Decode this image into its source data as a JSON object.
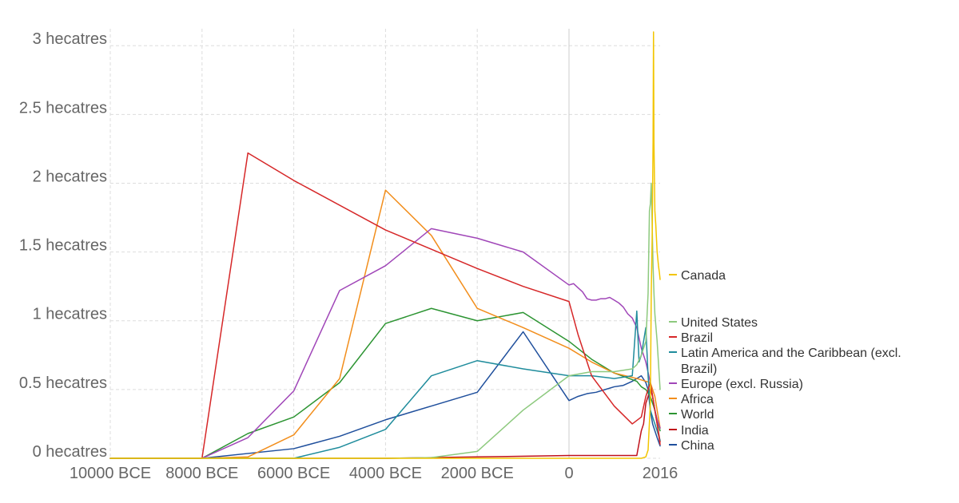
{
  "chart_data": {
    "type": "line",
    "title": "",
    "xlabel": "",
    "ylabel": "",
    "ylim": [
      0,
      3.1
    ],
    "xlim": [
      -10000,
      2016
    ],
    "grid": true,
    "legend": "right",
    "y_ticks": [
      {
        "value": 0,
        "label": "0 hecatres"
      },
      {
        "value": 0.5,
        "label": "0.5 hecatres"
      },
      {
        "value": 1,
        "label": "1 hecatres"
      },
      {
        "value": 1.5,
        "label": "1.5 hecatres"
      },
      {
        "value": 2,
        "label": "2 hecatres"
      },
      {
        "value": 2.5,
        "label": "2.5 hecatres"
      },
      {
        "value": 3,
        "label": "3 hecatres"
      }
    ],
    "x_ticks": [
      {
        "value": -10000,
        "label": "10000 BCE"
      },
      {
        "value": -8000,
        "label": "8000 BCE"
      },
      {
        "value": -6000,
        "label": "6000 BCE"
      },
      {
        "value": -4000,
        "label": "4000 BCE"
      },
      {
        "value": -2000,
        "label": "2000 BCE"
      },
      {
        "value": 0,
        "label": "0"
      },
      {
        "value": 2016,
        "label": "2016"
      }
    ],
    "series": [
      {
        "name": "Canada",
        "color": "#f2c500",
        "label_lines": [
          "Canada"
        ],
        "points": [
          [
            -10000,
            0
          ],
          [
            -8000,
            0
          ],
          [
            -7000,
            0
          ],
          [
            -6000,
            0
          ],
          [
            -5000,
            0
          ],
          [
            -4000,
            0
          ],
          [
            -3000,
            0
          ],
          [
            -2000,
            0
          ],
          [
            -1000,
            0
          ],
          [
            0,
            0
          ],
          [
            1000,
            0
          ],
          [
            1400,
            0
          ],
          [
            1600,
            0
          ],
          [
            1700,
            0.01
          ],
          [
            1750,
            0.06
          ],
          [
            1800,
            0.4
          ],
          [
            1820,
            1.2
          ],
          [
            1840,
            1.6
          ],
          [
            1860,
            2.3
          ],
          [
            1870,
            3.1
          ],
          [
            1880,
            2.3
          ],
          [
            1900,
            1.8
          ],
          [
            1920,
            1.7
          ],
          [
            1950,
            1.5
          ],
          [
            1980,
            1.4
          ],
          [
            2000,
            1.35
          ],
          [
            2016,
            1.3
          ]
        ]
      },
      {
        "name": "United States",
        "color": "#8dc97e",
        "label_lines": [
          "United States"
        ],
        "points": [
          [
            -10000,
            0
          ],
          [
            -8000,
            0
          ],
          [
            -6000,
            0
          ],
          [
            -4000,
            0
          ],
          [
            -3000,
            0.005
          ],
          [
            -2000,
            0.05
          ],
          [
            -1000,
            0.35
          ],
          [
            0,
            0.6
          ],
          [
            500,
            0.63
          ],
          [
            1000,
            0.63
          ],
          [
            1400,
            0.65
          ],
          [
            1500,
            0.68
          ],
          [
            1600,
            0.75
          ],
          [
            1700,
            0.85
          ],
          [
            1750,
            1.2
          ],
          [
            1780,
            1.8
          ],
          [
            1800,
            1.85
          ],
          [
            1820,
            2.0
          ],
          [
            1840,
            1.7
          ],
          [
            1860,
            1.4
          ],
          [
            1880,
            1.2
          ],
          [
            1900,
            1.05
          ],
          [
            1950,
            0.85
          ],
          [
            2016,
            0.5
          ]
        ]
      },
      {
        "name": "Brazil",
        "color": "#d62728",
        "label_lines": [
          "Brazil"
        ],
        "points": [
          [
            -10000,
            0
          ],
          [
            -8000,
            0
          ],
          [
            -7000,
            2.22
          ],
          [
            -6000,
            2.02
          ],
          [
            -4000,
            1.66
          ],
          [
            -2000,
            1.38
          ],
          [
            -1000,
            1.25
          ],
          [
            0,
            1.14
          ],
          [
            200,
            0.9
          ],
          [
            500,
            0.6
          ],
          [
            1000,
            0.38
          ],
          [
            1400,
            0.25
          ],
          [
            1600,
            0.3
          ],
          [
            1700,
            0.45
          ],
          [
            1750,
            0.5
          ],
          [
            1800,
            0.55
          ],
          [
            1850,
            0.45
          ],
          [
            1900,
            0.35
          ],
          [
            1950,
            0.25
          ],
          [
            2016,
            0.1
          ]
        ]
      },
      {
        "name": "Latin America and the Caribbean (excl. Brazil)",
        "color": "#1f8c9c",
        "label_lines": [
          "Latin America and the Caribbean (excl.",
          "Brazil)"
        ],
        "points": [
          [
            -10000,
            0
          ],
          [
            -8000,
            0
          ],
          [
            -6000,
            0
          ],
          [
            -5000,
            0.08
          ],
          [
            -4000,
            0.21
          ],
          [
            -3000,
            0.6
          ],
          [
            -2000,
            0.71
          ],
          [
            -1000,
            0.65
          ],
          [
            0,
            0.6
          ],
          [
            500,
            0.6
          ],
          [
            1000,
            0.58
          ],
          [
            1400,
            0.6
          ],
          [
            1500,
            1.07
          ],
          [
            1550,
            0.7
          ],
          [
            1600,
            0.75
          ],
          [
            1700,
            0.95
          ],
          [
            1750,
            0.6
          ],
          [
            1800,
            0.35
          ],
          [
            1850,
            0.3
          ],
          [
            1900,
            0.25
          ],
          [
            1950,
            0.2
          ],
          [
            2016,
            0.13
          ]
        ]
      },
      {
        "name": "Europe (excl. Russia)",
        "color": "#a046b8",
        "label_lines": [
          "Europe (excl. Russia)"
        ],
        "points": [
          [
            -10000,
            0
          ],
          [
            -8000,
            0
          ],
          [
            -7000,
            0.15
          ],
          [
            -6000,
            0.49
          ],
          [
            -5000,
            1.22
          ],
          [
            -4000,
            1.4
          ],
          [
            -3000,
            1.67
          ],
          [
            -2000,
            1.6
          ],
          [
            -1000,
            1.5
          ],
          [
            0,
            1.26
          ],
          [
            100,
            1.27
          ],
          [
            200,
            1.24
          ],
          [
            300,
            1.21
          ],
          [
            400,
            1.16
          ],
          [
            500,
            1.15
          ],
          [
            600,
            1.15
          ],
          [
            700,
            1.16
          ],
          [
            800,
            1.16
          ],
          [
            900,
            1.17
          ],
          [
            1000,
            1.15
          ],
          [
            1100,
            1.13
          ],
          [
            1200,
            1.1
          ],
          [
            1300,
            1.05
          ],
          [
            1400,
            1.02
          ],
          [
            1500,
            0.95
          ],
          [
            1600,
            0.8
          ],
          [
            1700,
            0.7
          ],
          [
            1800,
            0.55
          ],
          [
            1850,
            0.45
          ],
          [
            1900,
            0.35
          ],
          [
            1950,
            0.28
          ],
          [
            2016,
            0.22
          ]
        ]
      },
      {
        "name": "Africa",
        "color": "#f28e1c",
        "label_lines": [
          "Africa"
        ],
        "points": [
          [
            -10000,
            0
          ],
          [
            -8000,
            0
          ],
          [
            -7000,
            0.01
          ],
          [
            -6000,
            0.17
          ],
          [
            -5000,
            0.58
          ],
          [
            -4000,
            1.95
          ],
          [
            -3000,
            1.62
          ],
          [
            -2000,
            1.09
          ],
          [
            -1000,
            0.95
          ],
          [
            0,
            0.8
          ],
          [
            500,
            0.7
          ],
          [
            1000,
            0.62
          ],
          [
            1500,
            0.58
          ],
          [
            1700,
            0.56
          ],
          [
            1800,
            0.55
          ],
          [
            1850,
            0.5
          ],
          [
            1900,
            0.45
          ],
          [
            1950,
            0.35
          ],
          [
            2016,
            0.22
          ]
        ]
      },
      {
        "name": "World",
        "color": "#2c9432",
        "label_lines": [
          "World"
        ],
        "points": [
          [
            -10000,
            0
          ],
          [
            -8000,
            0
          ],
          [
            -7000,
            0.18
          ],
          [
            -6000,
            0.3
          ],
          [
            -5000,
            0.55
          ],
          [
            -4000,
            0.98
          ],
          [
            -3000,
            1.09
          ],
          [
            -2000,
            1.0
          ],
          [
            -1000,
            1.06
          ],
          [
            0,
            0.85
          ],
          [
            500,
            0.72
          ],
          [
            1000,
            0.62
          ],
          [
            1500,
            0.56
          ],
          [
            1600,
            0.52
          ],
          [
            1700,
            0.5
          ],
          [
            1800,
            0.45
          ],
          [
            1900,
            0.35
          ],
          [
            1950,
            0.28
          ],
          [
            2016,
            0.2
          ]
        ]
      },
      {
        "name": "India",
        "color": "#c0111a",
        "label_lines": [
          "India"
        ],
        "points": [
          [
            -10000,
            0
          ],
          [
            -8000,
            0
          ],
          [
            -6000,
            0
          ],
          [
            -4000,
            0
          ],
          [
            -2000,
            0.01
          ],
          [
            0,
            0.02
          ],
          [
            1000,
            0.02
          ],
          [
            1500,
            0.02
          ],
          [
            1600,
            0.2
          ],
          [
            1650,
            0.25
          ],
          [
            1700,
            0.4
          ],
          [
            1750,
            0.45
          ],
          [
            1800,
            0.5
          ],
          [
            1850,
            0.45
          ],
          [
            1900,
            0.35
          ],
          [
            1950,
            0.25
          ],
          [
            2016,
            0.12
          ]
        ]
      },
      {
        "name": "China",
        "color": "#1f4f9c",
        "label_lines": [
          "China"
        ],
        "points": [
          [
            -10000,
            0
          ],
          [
            -8000,
            0
          ],
          [
            -6000,
            0.07
          ],
          [
            -5000,
            0.16
          ],
          [
            -4000,
            0.28
          ],
          [
            -3000,
            0.38
          ],
          [
            -2000,
            0.48
          ],
          [
            -1000,
            0.92
          ],
          [
            0,
            0.42
          ],
          [
            200,
            0.45
          ],
          [
            400,
            0.47
          ],
          [
            600,
            0.48
          ],
          [
            800,
            0.5
          ],
          [
            1000,
            0.52
          ],
          [
            1200,
            0.53
          ],
          [
            1400,
            0.56
          ],
          [
            1500,
            0.58
          ],
          [
            1600,
            0.6
          ],
          [
            1700,
            0.55
          ],
          [
            1750,
            0.5
          ],
          [
            1800,
            0.35
          ],
          [
            1850,
            0.25
          ],
          [
            1900,
            0.2
          ],
          [
            1950,
            0.15
          ],
          [
            2016,
            0.09
          ]
        ]
      }
    ]
  }
}
